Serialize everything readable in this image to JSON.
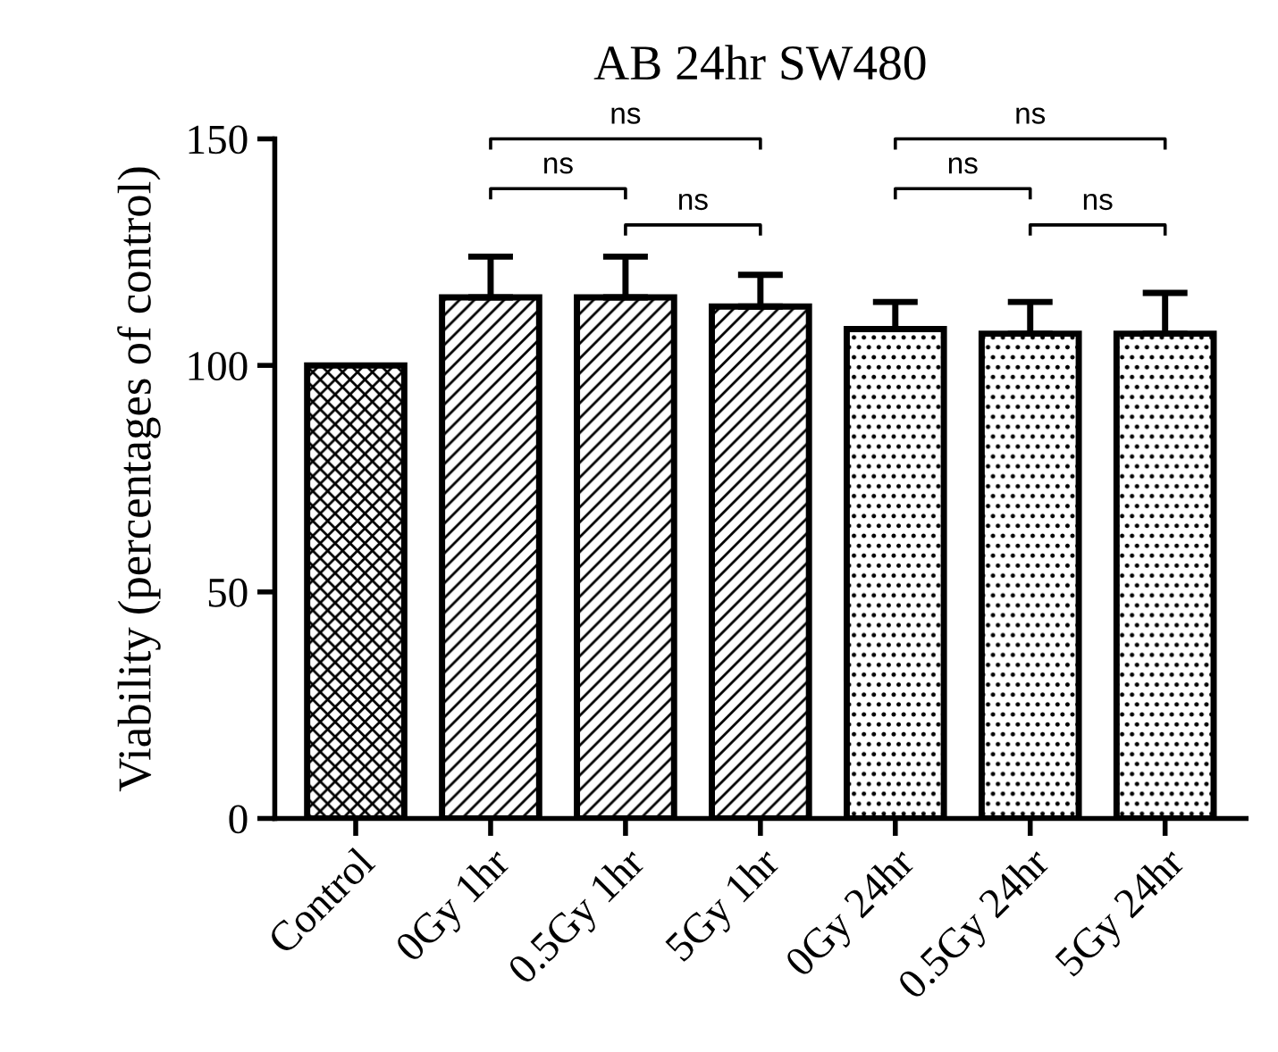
{
  "chart_data": {
    "type": "bar",
    "title": "AB 24hr SW480",
    "ylabel": "Viability (percentages of control)",
    "categories": [
      "Control",
      "0Gy 1hr",
      "0.5Gy 1hr",
      "5Gy 1hr",
      "0Gy 24hr",
      "0.5Gy 24hr",
      "5Gy 24hr"
    ],
    "values": [
      100,
      115,
      115,
      113,
      108,
      107,
      107
    ],
    "errors": [
      null,
      [
        115,
        124
      ],
      [
        115,
        124
      ],
      [
        113,
        120
      ],
      [
        108,
        114
      ],
      [
        107,
        114
      ],
      [
        107,
        116
      ]
    ],
    "ylim": [
      0,
      150
    ],
    "yticks": [
      0,
      50,
      100,
      150
    ],
    "grid": false,
    "annotations": [
      "ns",
      "ns",
      "ns",
      "ns",
      "ns",
      "ns"
    ]
  }
}
